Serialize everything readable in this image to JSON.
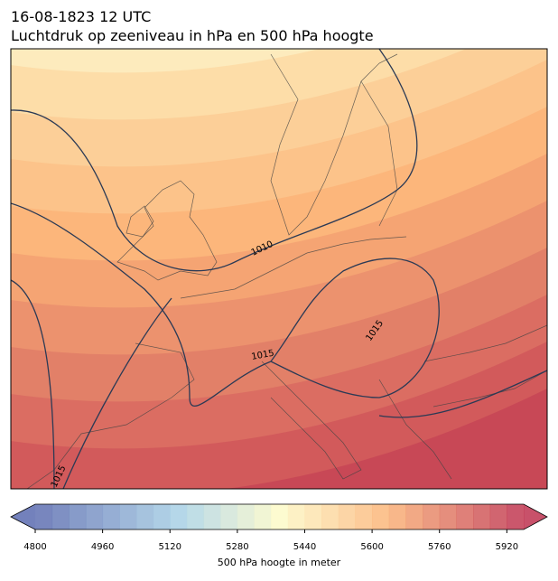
{
  "header": {
    "title": "16-08-1823 12 UTC",
    "subtitle": "Luchtdruk op zeeniveau in hPa en 500 hPa hoogte"
  },
  "isobar_labels": [
    "1010",
    "1015",
    "1015",
    "1015"
  ],
  "colorbar": {
    "label": "500 hPa hoogte in meter",
    "range": [
      4800,
      5960
    ],
    "step": 40,
    "ticks": [
      4800,
      4960,
      5120,
      5280,
      5440,
      5600,
      5760,
      5920
    ]
  }
}
